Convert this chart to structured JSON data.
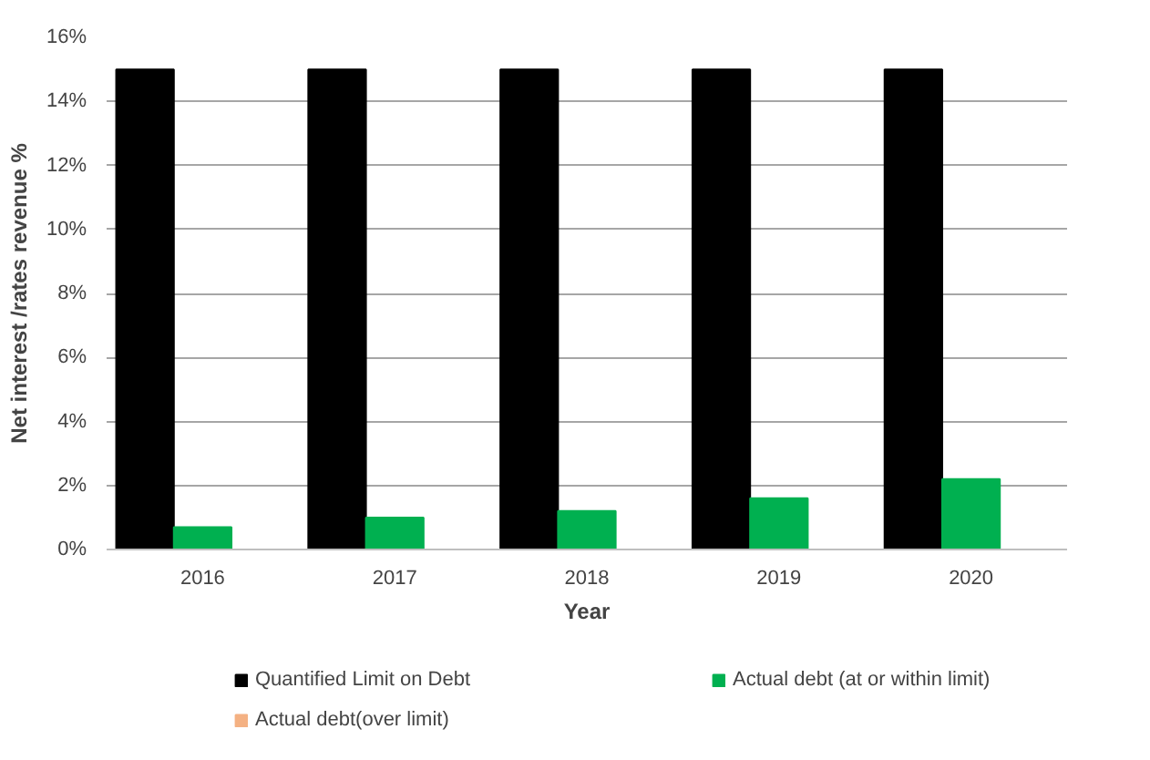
{
  "chart_data": {
    "type": "bar",
    "xlabel": "Year",
    "ylabel": "Net interest /rates revenue %",
    "categories": [
      "2016",
      "2017",
      "2018",
      "2019",
      "2020"
    ],
    "series": [
      {
        "name": "Quantified Limit on Debt",
        "color": "#000000",
        "values": [
          15,
          15,
          15,
          15,
          15
        ]
      },
      {
        "name": "Actual debt (at or within limit)",
        "color": "#00b050",
        "values": [
          0.7,
          1.0,
          1.2,
          1.6,
          2.2
        ]
      },
      {
        "name": "Actual debt(over limit)",
        "color": "#f4b183",
        "values": [
          null,
          null,
          null,
          null,
          null
        ]
      }
    ],
    "ylim": [
      0,
      16
    ],
    "yticks": [
      {
        "value": 0,
        "label": "0%"
      },
      {
        "value": 2,
        "label": "2%"
      },
      {
        "value": 4,
        "label": "4%"
      },
      {
        "value": 6,
        "label": "6%"
      },
      {
        "value": 8,
        "label": "8%"
      },
      {
        "value": 10,
        "label": "10%"
      },
      {
        "value": 12,
        "label": "12%"
      },
      {
        "value": 14,
        "label": "14%"
      },
      {
        "value": 16,
        "label": "16%"
      }
    ],
    "grid": "y",
    "legend": "bottom"
  }
}
